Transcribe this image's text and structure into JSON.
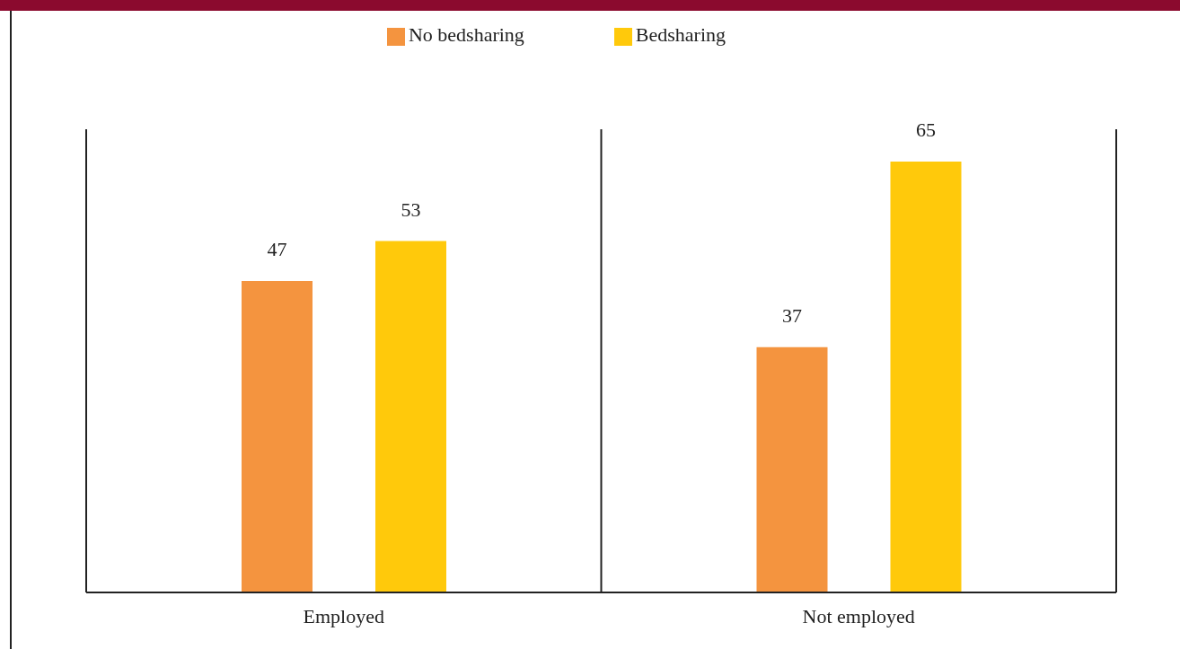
{
  "chart_data": {
    "type": "bar",
    "categories": [
      "Employed",
      "Not employed"
    ],
    "series": [
      {
        "name": "No bedsharing",
        "color": "#f4943f",
        "values": [
          47,
          37
        ]
      },
      {
        "name": "Bedsharing",
        "color": "#ffc90b",
        "values": [
          53,
          65
        ]
      }
    ],
    "data_labels": true,
    "legend": "top"
  }
}
